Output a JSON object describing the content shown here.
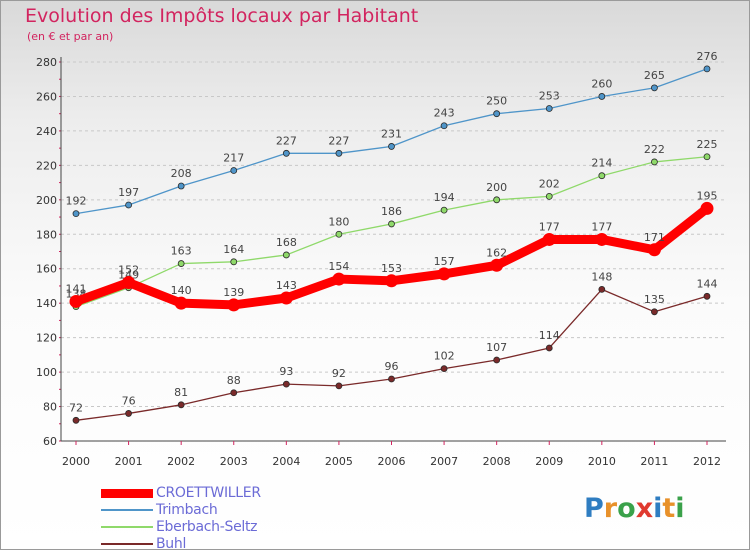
{
  "header": {
    "title": "Evolution des Impôts locaux par Habitant",
    "subtitle": "(en € et par an)"
  },
  "logo": {
    "text": "Proxiti"
  },
  "chart_data": {
    "type": "line",
    "title": "Evolution des Impôts locaux par Habitant",
    "subtitle": "(en € et par an)",
    "xlabel": "",
    "ylabel": "",
    "x": [
      "2000",
      "2001",
      "2002",
      "2003",
      "2004",
      "2005",
      "2006",
      "2007",
      "2008",
      "2009",
      "2010",
      "2011",
      "2012"
    ],
    "ylim": [
      60,
      280
    ],
    "yticks": [
      60,
      80,
      100,
      120,
      140,
      160,
      180,
      200,
      220,
      240,
      260,
      280
    ],
    "grid": "horizontal dashed",
    "legend_position": "bottom-left",
    "series": [
      {
        "name": "CROETTWILLER",
        "color": "#ff0000",
        "values": [
          141,
          152,
          140,
          139,
          143,
          154,
          153,
          157,
          162,
          177,
          177,
          171,
          195
        ]
      },
      {
        "name": "Trimbach",
        "color": "#4f95c9",
        "values": [
          192,
          197,
          208,
          217,
          227,
          227,
          231,
          243,
          250,
          253,
          260,
          265,
          276
        ]
      },
      {
        "name": "Eberbach-Seltz",
        "color": "#8fd96a",
        "values": [
          138,
          149,
          163,
          164,
          168,
          180,
          186,
          194,
          200,
          202,
          214,
          222,
          225
        ]
      },
      {
        "name": "Buhl",
        "color": "#7a2a2a",
        "values": [
          72,
          76,
          81,
          88,
          93,
          92,
          96,
          102,
          107,
          114,
          148,
          135,
          144
        ]
      }
    ]
  }
}
